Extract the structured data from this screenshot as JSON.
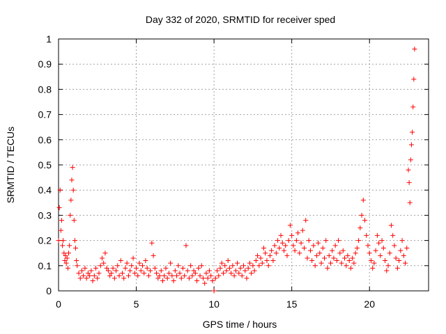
{
  "chart_data": {
    "type": "scatter",
    "title": "Day 332 of 2020, SRMTID for receiver sped",
    "xlabel": "GPS time / hours",
    "ylabel": "SRMTID / TECUs",
    "xlim": [
      0,
      23.8
    ],
    "ylim": [
      0,
      1
    ],
    "xticks": [
      0,
      5,
      10,
      15,
      20
    ],
    "xtick_labels": [
      "0",
      "5",
      "10",
      "15",
      "20"
    ],
    "yticks": [
      0,
      0.1,
      0.2,
      0.3,
      0.4,
      0.5,
      0.6,
      0.7,
      0.8,
      0.9,
      1
    ],
    "ytick_labels": [
      "0",
      "0.1",
      "0.2",
      "0.3",
      "0.4",
      "0.5",
      "0.6",
      "0.7",
      "0.8",
      "0.9",
      "1"
    ],
    "grid": true,
    "marker": "+",
    "color": "#ff0000",
    "series": [
      {
        "name": "SRMTID",
        "x": [
          0.0,
          0.05,
          0.1,
          0.15,
          0.2,
          0.25,
          0.3,
          0.35,
          0.4,
          0.45,
          0.5,
          0.55,
          0.6,
          0.65,
          0.7,
          0.75,
          0.8,
          0.85,
          0.9,
          0.95,
          1.0,
          1.05,
          1.1,
          1.15,
          1.2,
          1.3,
          1.4,
          1.5,
          1.6,
          1.7,
          1.8,
          1.9,
          2.0,
          2.1,
          2.2,
          2.3,
          2.4,
          2.5,
          2.6,
          2.7,
          2.8,
          2.9,
          3.0,
          3.1,
          3.2,
          3.3,
          3.4,
          3.5,
          3.6,
          3.7,
          3.8,
          3.9,
          4.0,
          4.1,
          4.2,
          4.3,
          4.4,
          4.5,
          4.6,
          4.7,
          4.8,
          4.9,
          5.0,
          5.1,
          5.2,
          5.3,
          5.4,
          5.5,
          5.6,
          5.7,
          5.8,
          5.9,
          6.0,
          6.1,
          6.2,
          6.3,
          6.4,
          6.5,
          6.6,
          6.7,
          6.8,
          6.9,
          7.0,
          7.1,
          7.2,
          7.3,
          7.4,
          7.5,
          7.6,
          7.7,
          7.8,
          7.9,
          8.0,
          8.1,
          8.2,
          8.3,
          8.4,
          8.5,
          8.6,
          8.7,
          8.8,
          8.9,
          9.0,
          9.1,
          9.2,
          9.3,
          9.4,
          9.5,
          9.6,
          9.7,
          9.8,
          9.9,
          10.0,
          10.1,
          10.2,
          10.3,
          10.4,
          10.5,
          10.6,
          10.7,
          10.8,
          10.9,
          11.0,
          11.1,
          11.2,
          11.3,
          11.4,
          11.5,
          11.6,
          11.7,
          11.8,
          11.9,
          12.0,
          12.1,
          12.2,
          12.3,
          12.4,
          12.5,
          12.6,
          12.7,
          12.8,
          12.9,
          13.0,
          13.1,
          13.2,
          13.3,
          13.4,
          13.5,
          13.6,
          13.7,
          13.8,
          13.9,
          14.0,
          14.1,
          14.2,
          14.3,
          14.4,
          14.5,
          14.6,
          14.7,
          14.8,
          14.9,
          15.0,
          15.1,
          15.2,
          15.3,
          15.4,
          15.5,
          15.6,
          15.7,
          15.8,
          15.9,
          16.0,
          16.1,
          16.2,
          16.3,
          16.4,
          16.5,
          16.6,
          16.7,
          16.8,
          16.9,
          17.0,
          17.1,
          17.2,
          17.3,
          17.4,
          17.5,
          17.6,
          17.7,
          17.8,
          17.9,
          18.0,
          18.1,
          18.2,
          18.3,
          18.4,
          18.5,
          18.6,
          18.7,
          18.8,
          18.9,
          19.0,
          19.1,
          19.2,
          19.3,
          19.4,
          19.5,
          19.6,
          19.7,
          19.8,
          19.9,
          20.0,
          20.1,
          20.2,
          20.3,
          20.4,
          20.5,
          20.6,
          20.7,
          20.8,
          20.9,
          21.0,
          21.1,
          21.2,
          21.3,
          21.4,
          21.5,
          21.6,
          21.7,
          21.8,
          21.9,
          22.0,
          22.1,
          22.2,
          22.3,
          22.4,
          22.5,
          22.55,
          22.6,
          22.65,
          22.7,
          22.75,
          22.8,
          22.85,
          22.9
        ],
        "y": [
          0.2,
          0.33,
          0.4,
          0.24,
          0.28,
          0.18,
          0.2,
          0.15,
          0.12,
          0.14,
          0.11,
          0.13,
          0.09,
          0.15,
          0.18,
          0.3,
          0.36,
          0.44,
          0.49,
          0.4,
          0.28,
          0.2,
          0.17,
          0.12,
          0.1,
          0.07,
          0.05,
          0.08,
          0.06,
          0.09,
          0.05,
          0.07,
          0.06,
          0.08,
          0.04,
          0.06,
          0.09,
          0.05,
          0.07,
          0.1,
          0.13,
          0.11,
          0.15,
          0.09,
          0.08,
          0.06,
          0.07,
          0.09,
          0.05,
          0.08,
          0.1,
          0.06,
          0.12,
          0.07,
          0.05,
          0.09,
          0.11,
          0.06,
          0.08,
          0.1,
          0.13,
          0.07,
          0.09,
          0.06,
          0.11,
          0.08,
          0.1,
          0.07,
          0.12,
          0.09,
          0.06,
          0.08,
          0.19,
          0.14,
          0.09,
          0.07,
          0.05,
          0.06,
          0.08,
          0.04,
          0.06,
          0.09,
          0.05,
          0.07,
          0.11,
          0.06,
          0.04,
          0.08,
          0.06,
          0.1,
          0.07,
          0.05,
          0.09,
          0.06,
          0.18,
          0.08,
          0.05,
          0.1,
          0.06,
          0.08,
          0.07,
          0.04,
          0.09,
          0.06,
          0.1,
          0.05,
          0.03,
          0.07,
          0.05,
          0.08,
          0.06,
          0.04,
          0.0,
          0.05,
          0.08,
          0.06,
          0.09,
          0.11,
          0.07,
          0.1,
          0.08,
          0.12,
          0.09,
          0.07,
          0.1,
          0.06,
          0.08,
          0.11,
          0.07,
          0.09,
          0.06,
          0.1,
          0.08,
          0.05,
          0.09,
          0.11,
          0.07,
          0.1,
          0.08,
          0.12,
          0.14,
          0.1,
          0.13,
          0.11,
          0.17,
          0.15,
          0.12,
          0.1,
          0.14,
          0.16,
          0.12,
          0.18,
          0.15,
          0.2,
          0.17,
          0.22,
          0.19,
          0.16,
          0.18,
          0.14,
          0.2,
          0.26,
          0.22,
          0.18,
          0.16,
          0.2,
          0.23,
          0.15,
          0.19,
          0.24,
          0.17,
          0.28,
          0.13,
          0.2,
          0.16,
          0.12,
          0.18,
          0.1,
          0.14,
          0.19,
          0.15,
          0.11,
          0.17,
          0.13,
          0.2,
          0.09,
          0.14,
          0.11,
          0.16,
          0.13,
          0.18,
          0.12,
          0.2,
          0.15,
          0.11,
          0.16,
          0.13,
          0.1,
          0.14,
          0.12,
          0.09,
          0.13,
          0.11,
          0.15,
          0.17,
          0.2,
          0.25,
          0.3,
          0.36,
          0.28,
          0.22,
          0.18,
          0.15,
          0.12,
          0.09,
          0.11,
          0.16,
          0.22,
          0.19,
          0.14,
          0.2,
          0.17,
          0.12,
          0.08,
          0.1,
          0.15,
          0.26,
          0.22,
          0.18,
          0.13,
          0.09,
          0.12,
          0.16,
          0.2,
          0.14,
          0.11,
          0.17,
          0.48,
          0.43,
          0.35,
          0.52,
          0.58,
          0.63,
          0.73,
          0.84,
          0.96
        ]
      }
    ]
  }
}
